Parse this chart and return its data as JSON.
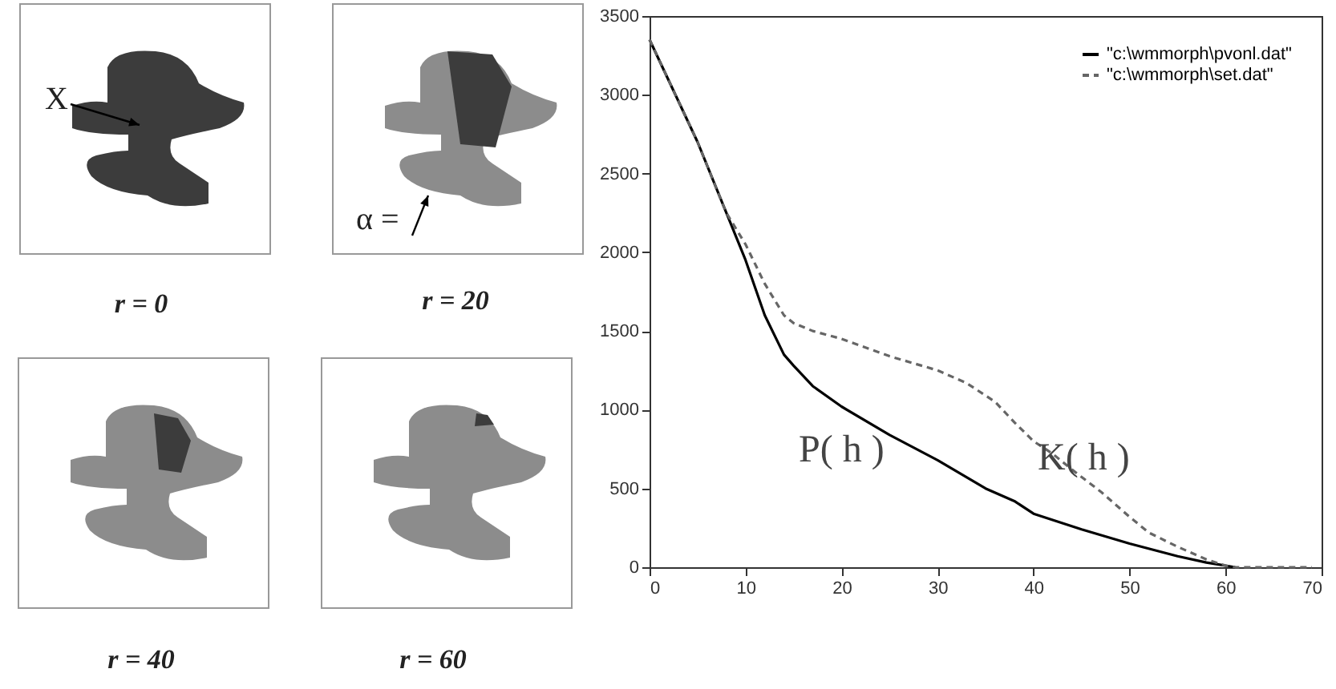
{
  "chart_data": {
    "type": "line",
    "series": [
      {
        "name": "\"c:\\wmmorph\\pvonl.dat\"",
        "color": "#000000",
        "line_style": "solid",
        "x": [
          0,
          5,
          8,
          10,
          12,
          14,
          15,
          17,
          20,
          25,
          30,
          35,
          38,
          40,
          45,
          50,
          55,
          58,
          60,
          61
        ],
        "values": [
          3350,
          2700,
          2250,
          1950,
          1600,
          1350,
          1280,
          1150,
          1020,
          840,
          680,
          500,
          420,
          340,
          240,
          150,
          70,
          30,
          10,
          0
        ]
      },
      {
        "name": "\"c:\\wmmorph\\set.dat\"",
        "color": "#666666",
        "line_style": "dashed",
        "x": [
          0,
          5,
          8,
          10,
          12,
          14,
          15,
          17,
          20,
          25,
          30,
          33,
          36,
          38,
          40,
          42,
          44,
          47,
          50,
          52,
          55,
          58,
          60,
          61,
          69
        ],
        "values": [
          3350,
          2700,
          2250,
          2050,
          1800,
          1600,
          1550,
          1500,
          1450,
          1340,
          1250,
          1170,
          1050,
          920,
          800,
          720,
          620,
          480,
          320,
          220,
          130,
          50,
          10,
          0,
          0
        ]
      }
    ],
    "xlim": [
      0,
      70
    ],
    "xticks": [
      0,
      10,
      20,
      30,
      40,
      50,
      60,
      70
    ],
    "ylim": [
      0,
      3500
    ],
    "yticks": [
      0,
      500,
      1000,
      1500,
      2000,
      2500,
      3000,
      3500
    ],
    "legend": "top right",
    "grid": false,
    "annotations": [
      "X",
      "α =",
      "r = 0",
      "r = 20",
      "r = 40",
      "r = 60",
      "P( h )",
      "K( h )"
    ]
  }
}
